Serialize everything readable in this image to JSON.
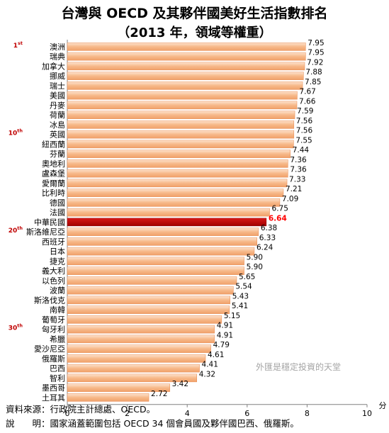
{
  "title": "台灣與 OECD 及其夥伴國美好生活指數排名",
  "subtitle": "（2013 年，領域等權重）",
  "chart_data": {
    "type": "bar",
    "orientation": "horizontal",
    "categories": [
      "澳洲",
      "瑞典",
      "加拿大",
      "挪威",
      "瑞士",
      "美國",
      "丹麥",
      "荷蘭",
      "冰島",
      "英國",
      "紐西蘭",
      "芬蘭",
      "奧地利",
      "盧森堡",
      "愛爾蘭",
      "比利時",
      "德國",
      "法國",
      "中華民國",
      "斯洛維尼亞",
      "西班牙",
      "日本",
      "捷克",
      "義大利",
      "以色列",
      "波蘭",
      "斯洛伐克",
      "南韓",
      "葡萄牙",
      "匈牙利",
      "希臘",
      "愛沙尼亞",
      "俄羅斯",
      "巴西",
      "智利",
      "墨西哥",
      "土耳其"
    ],
    "values": [
      7.95,
      7.95,
      7.92,
      7.88,
      7.85,
      7.67,
      7.66,
      7.59,
      7.56,
      7.56,
      7.55,
      7.44,
      7.36,
      7.36,
      7.33,
      7.21,
      7.09,
      6.75,
      6.64,
      6.38,
      6.33,
      6.24,
      5.9,
      5.9,
      5.65,
      5.54,
      5.43,
      5.41,
      5.15,
      4.91,
      4.91,
      4.79,
      4.61,
      4.41,
      4.32,
      3.42,
      2.72
    ],
    "value_labels": [
      "7.95",
      "7.95",
      "7.92",
      "7.88",
      "7.85",
      "7.67",
      "7.66",
      "7.59",
      "7.56",
      "7.56",
      "7.55",
      "7.44",
      "7.36",
      "7.36",
      "7.33",
      "7.21",
      "7.09",
      "6.75",
      "6.64",
      "6.38",
      "6.33",
      "6.24",
      "5.90",
      "5.90",
      "5.65",
      "5.54",
      "5.43",
      "5.41",
      "5.15",
      "4.91",
      "4.91",
      "4.79",
      "4.61",
      "4.41",
      "4.32",
      "3.42",
      "2.72"
    ],
    "highlight": "中華民國",
    "xlim": [
      0,
      10
    ],
    "xticks": [
      "0",
      "2",
      "4",
      "6",
      "8",
      "10"
    ],
    "xunit": "分",
    "rank_markers": [
      {
        "rank": 1,
        "num": "1",
        "sup": "st"
      },
      {
        "rank": 10,
        "num": "10",
        "sup": "th"
      },
      {
        "rank": 20,
        "num": "20",
        "sup": "th"
      },
      {
        "rank": 30,
        "num": "30",
        "sup": "th"
      }
    ],
    "watermark": "外匯是穩定投資的天堂",
    "colors": {
      "bar": "#f7b98a",
      "bar_edge": "#e8894f",
      "highlight": "#c00000",
      "highlight_label": "#ff0000",
      "rank": "#c00000"
    },
    "grid": false,
    "legend": "none"
  },
  "footnotes": {
    "source_label": "資料來源：",
    "source_text": "行政院主計總處、OECD。",
    "note_label": "說　　明：",
    "note_text": "國家涵蓋範圍包括 OECD 34 個會員國及夥伴國巴西、俄羅斯。"
  }
}
